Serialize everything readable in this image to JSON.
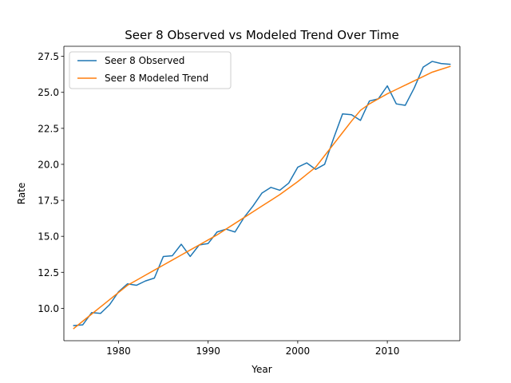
{
  "chart_data": {
    "type": "line",
    "title": "Seer 8 Observed vs Modeled Trend Over Time",
    "xlabel": "Year",
    "ylabel": "Rate",
    "xlim": [
      1973.9,
      2018.1
    ],
    "ylim": [
      7.75,
      28.2
    ],
    "xticks": [
      1980,
      1990,
      2000,
      2010
    ],
    "yticks": [
      10.0,
      12.5,
      15.0,
      17.5,
      20.0,
      22.5,
      25.0,
      27.5
    ],
    "xtick_labels": [
      "1980",
      "1990",
      "2000",
      "2010"
    ],
    "ytick_labels": [
      "10.0",
      "12.5",
      "15.0",
      "17.5",
      "20.0",
      "22.5",
      "25.0",
      "27.5"
    ],
    "grid": false,
    "legend_position": "upper-left",
    "x": [
      1975,
      1976,
      1977,
      1978,
      1979,
      1980,
      1981,
      1982,
      1983,
      1984,
      1985,
      1986,
      1987,
      1988,
      1989,
      1990,
      1991,
      1992,
      1993,
      1994,
      1995,
      1996,
      1997,
      1998,
      1999,
      2000,
      2001,
      2002,
      2003,
      2004,
      2005,
      2006,
      2007,
      2008,
      2009,
      2010,
      2011,
      2012,
      2013,
      2014,
      2015,
      2016,
      2017
    ],
    "series": [
      {
        "name": "Seer 8 Observed",
        "color": "#1f77b4",
        "values": [
          8.8,
          8.85,
          9.7,
          9.65,
          10.25,
          11.15,
          11.7,
          11.6,
          11.9,
          12.1,
          13.6,
          13.65,
          14.45,
          13.6,
          14.4,
          14.5,
          15.3,
          15.5,
          15.3,
          16.3,
          17.1,
          18.0,
          18.4,
          18.2,
          18.7,
          19.8,
          20.1,
          19.65,
          20.0,
          21.8,
          23.5,
          23.45,
          23.05,
          24.4,
          24.55,
          25.45,
          24.2,
          24.1,
          25.3,
          26.75,
          27.15,
          27.0,
          26.95
        ]
      },
      {
        "name": "Seer 8 Modeled Trend",
        "color": "#ff7f0e",
        "values": [
          8.6,
          9.1,
          9.6,
          10.1,
          10.6,
          11.1,
          11.6,
          11.95,
          12.3,
          12.65,
          13.0,
          13.35,
          13.7,
          14.05,
          14.4,
          14.75,
          15.1,
          15.5,
          15.9,
          16.3,
          16.7,
          17.1,
          17.5,
          17.9,
          18.35,
          18.8,
          19.3,
          19.8,
          20.6,
          21.4,
          22.2,
          23.0,
          23.75,
          24.2,
          24.55,
          24.9,
          25.2,
          25.5,
          25.8,
          26.1,
          26.4,
          26.6,
          26.8
        ]
      }
    ]
  }
}
